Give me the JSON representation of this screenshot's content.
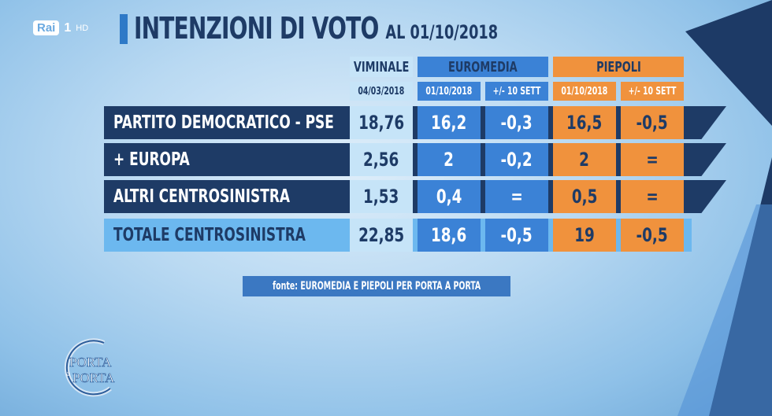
{
  "channel": {
    "logo": "Rai",
    "number": "1",
    "hd": "HD"
  },
  "title": {
    "main": "INTENZIONI DI VOTO",
    "date": "AL 01/10/2018"
  },
  "source": "fonte: EUROMEDIA E PIEPOLI PER PORTA A PORTA",
  "program_logo": {
    "line1": "PORTA",
    "line2": "a",
    "line3": "PORTA"
  },
  "colors": {
    "navy": "#1e3b66",
    "euromedia": "#3b82d6",
    "piepoli": "#f0923d",
    "viminale": "#c6e4f8",
    "total_row": "#6cb8ef"
  },
  "chart_data": {
    "type": "table",
    "title": "INTENZIONI DI VOTO AL 01/10/2018",
    "groups": [
      {
        "name": "VIMINALE",
        "columns": [
          "04/03/2018"
        ]
      },
      {
        "name": "EUROMEDIA",
        "columns": [
          "01/10/2018",
          "+/- 10 SETT"
        ]
      },
      {
        "name": "PIEPOLI",
        "columns": [
          "01/10/2018",
          "+/- 10 SETT"
        ]
      }
    ],
    "rows": [
      {
        "label": "PARTITO DEMOCRATICO - PSE",
        "values": [
          "18,76",
          "16,2",
          "-0,3",
          "16,5",
          "-0,5"
        ]
      },
      {
        "label": "+ EUROPA",
        "values": [
          "2,56",
          "2",
          "-0,2",
          "2",
          "="
        ]
      },
      {
        "label": "ALTRI CENTROSINISTRA",
        "values": [
          "1,53",
          "0,4",
          "=",
          "0,5",
          "="
        ]
      },
      {
        "label": "TOTALE CENTROSINISTRA",
        "values": [
          "22,85",
          "18,6",
          "-0,5",
          "19",
          "-0,5"
        ]
      }
    ]
  }
}
